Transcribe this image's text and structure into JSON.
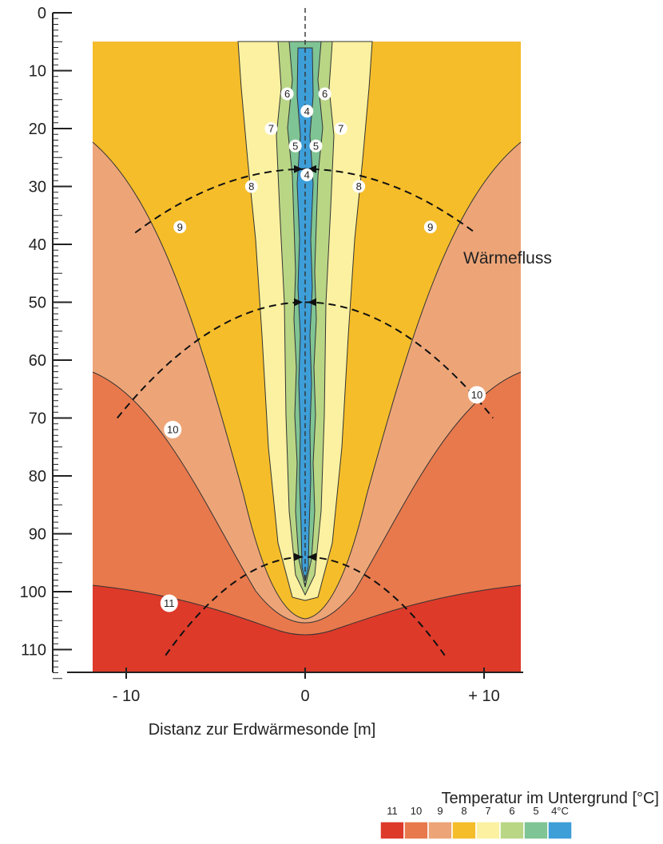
{
  "chart_data": {
    "type": "heatmap",
    "subtype": "temperature contour cross-section",
    "xlabel": "Distanz zur Erdwärmesonde  [m]",
    "ylabel": "",
    "x_ticks": [
      "- 10",
      "0",
      "+ 10"
    ],
    "x_tick_values": [
      -10,
      0,
      10
    ],
    "xlim": [
      -12,
      12
    ],
    "y_ticks": [
      "0",
      "10",
      "20",
      "30",
      "40",
      "50",
      "60",
      "70",
      "80",
      "90",
      "100",
      "110"
    ],
    "y_tick_values": [
      0,
      10,
      20,
      30,
      40,
      50,
      60,
      70,
      80,
      90,
      100,
      110
    ],
    "ylim": [
      0,
      115
    ],
    "y_inverted": true,
    "domain_top": 5,
    "annotation": "Wärmefluss",
    "colorbar": {
      "title": "Temperatur im Untergrund  [°C]",
      "labels": [
        "11",
        "10",
        "9",
        "8",
        "7",
        "6",
        "5",
        "4°C"
      ],
      "colors": [
        "#dd3a2a",
        "#e8794c",
        "#eda578",
        "#f5bd2a",
        "#fbf1a0",
        "#b9d685",
        "#7fc494",
        "#3d9ed8"
      ]
    },
    "isotherms": [
      {
        "value": 11,
        "label": "11",
        "label_at": [
          -7.6,
          102
        ]
      },
      {
        "value": 10,
        "label": "10",
        "label_at": [
          -7.4,
          72
        ]
      },
      {
        "value": 10,
        "label": "10",
        "label_at": [
          9.6,
          66
        ]
      },
      {
        "value": 9,
        "label": "9",
        "label_at": [
          -7.0,
          37
        ]
      },
      {
        "value": 9,
        "label": "9",
        "label_at": [
          7.0,
          37
        ]
      },
      {
        "value": 8,
        "label": "8",
        "label_at": [
          -3.0,
          30
        ]
      },
      {
        "value": 8,
        "label": "8",
        "label_at": [
          3.0,
          30
        ]
      },
      {
        "value": 7,
        "label": "7",
        "label_at": [
          -1.9,
          20
        ]
      },
      {
        "value": 7,
        "label": "7",
        "label_at": [
          2.0,
          20
        ]
      },
      {
        "value": 6,
        "label": "6",
        "label_at": [
          -1.0,
          14
        ]
      },
      {
        "value": 6,
        "label": "6",
        "label_at": [
          1.1,
          14
        ]
      },
      {
        "value": 5,
        "label": "5",
        "label_at": [
          -0.55,
          23
        ]
      },
      {
        "value": 5,
        "label": "5",
        "label_at": [
          0.6,
          23
        ]
      },
      {
        "value": 4,
        "label": "4",
        "label_at": [
          0.1,
          17
        ]
      },
      {
        "value": 4,
        "label": "4",
        "label_at": [
          0.1,
          28
        ]
      }
    ],
    "heat_flux_arcs": [
      {
        "center_depth": 27,
        "x_left": -9.5,
        "x_right": 9.5,
        "end_depth": 38
      },
      {
        "center_depth": 50,
        "x_left": -10.5,
        "x_right": 10.5,
        "end_depth": 70
      },
      {
        "center_depth": 94,
        "x_left": -7.8,
        "x_right": 7.8,
        "end_depth": 111
      }
    ],
    "legend_placement": "bottom-right",
    "grid": false
  }
}
